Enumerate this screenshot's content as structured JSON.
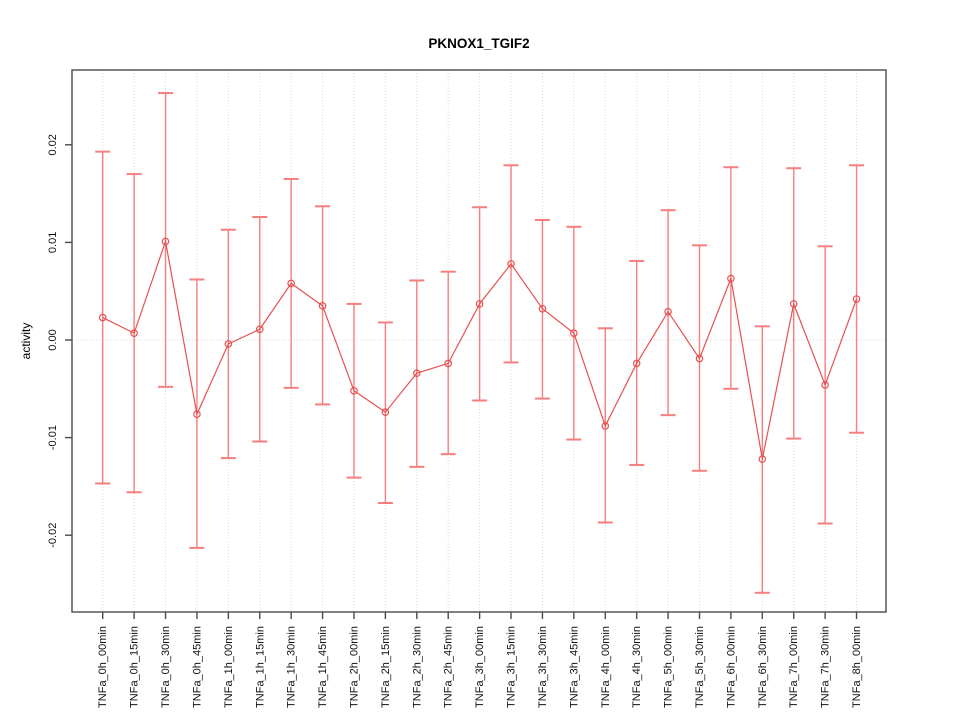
{
  "chart_data": {
    "type": "line",
    "title": "PKNOX1_TGIF2",
    "xlabel": "",
    "ylabel": "activity",
    "legend": "none",
    "grid": "vertical dotted gridline per category; dotted horizontal line at y=0",
    "ylim": [
      -0.027,
      0.027
    ],
    "ytick_values": [
      -0.02,
      -0.01,
      0,
      0.01,
      0.02
    ],
    "ytick_labels": [
      "-0.02",
      "-0.01",
      "0.00",
      "0.01",
      "0.02"
    ],
    "categories": [
      "TNFa_0h_00min",
      "TNFa_0h_15min",
      "TNFa_0h_30min",
      "TNFa_0h_45min",
      "TNFa_1h_00min",
      "TNFa_1h_15min",
      "TNFa_1h_30min",
      "TNFa_1h_45min",
      "TNFa_2h_00min",
      "TNFa_2h_15min",
      "TNFa_2h_30min",
      "TNFa_2h_45min",
      "TNFa_3h_00min",
      "TNFa_3h_15min",
      "TNFa_3h_30min",
      "TNFa_3h_45min",
      "TNFa_4h_00min",
      "TNFa_4h_30min",
      "TNFa_5h_00min",
      "TNFa_5h_30min",
      "TNFa_6h_00min",
      "TNFa_6h_30min",
      "TNFa_7h_00min",
      "TNFa_7h_30min",
      "TNFa_8h_00min"
    ],
    "series": [
      {
        "name": "activity",
        "marker": "open-circle",
        "values": [
          0.0023,
          0.0007,
          0.0101,
          -0.0076,
          -0.0004,
          0.0011,
          0.0058,
          0.0035,
          -0.0052,
          -0.0074,
          -0.0034,
          -0.0024,
          0.0037,
          0.0078,
          0.0032,
          0.0007,
          -0.0088,
          -0.0024,
          0.0029,
          -0.0019,
          0.0063,
          -0.0122,
          0.0037,
          -0.0046,
          0.0042
        ],
        "error_upper": [
          0.0193,
          0.017,
          0.0253,
          0.0062,
          0.0113,
          0.0126,
          0.0165,
          0.0137,
          0.0037,
          0.0018,
          0.0061,
          0.007,
          0.0136,
          0.0179,
          0.0123,
          0.0116,
          0.0012,
          0.0081,
          0.0133,
          0.0097,
          0.0177,
          0.0014,
          0.0176,
          0.0096,
          0.0179
        ],
        "error_lower": [
          -0.0147,
          -0.0156,
          -0.0048,
          -0.0213,
          -0.0121,
          -0.0104,
          -0.0049,
          -0.0066,
          -0.0141,
          -0.0167,
          -0.013,
          -0.0117,
          -0.0062,
          -0.0023,
          -0.006,
          -0.0102,
          -0.0187,
          -0.0128,
          -0.0077,
          -0.0134,
          -0.005,
          -0.0259,
          -0.0101,
          -0.0188,
          -0.0095
        ]
      }
    ],
    "colors": {
      "series_line": "#e85151",
      "marker_stroke": "#e85151",
      "error_bar": "#f67e7e",
      "grid": "#d9d9d9",
      "axis_box": "#4a4a4a",
      "tick_text": "#111111",
      "background": "#ffffff"
    }
  }
}
